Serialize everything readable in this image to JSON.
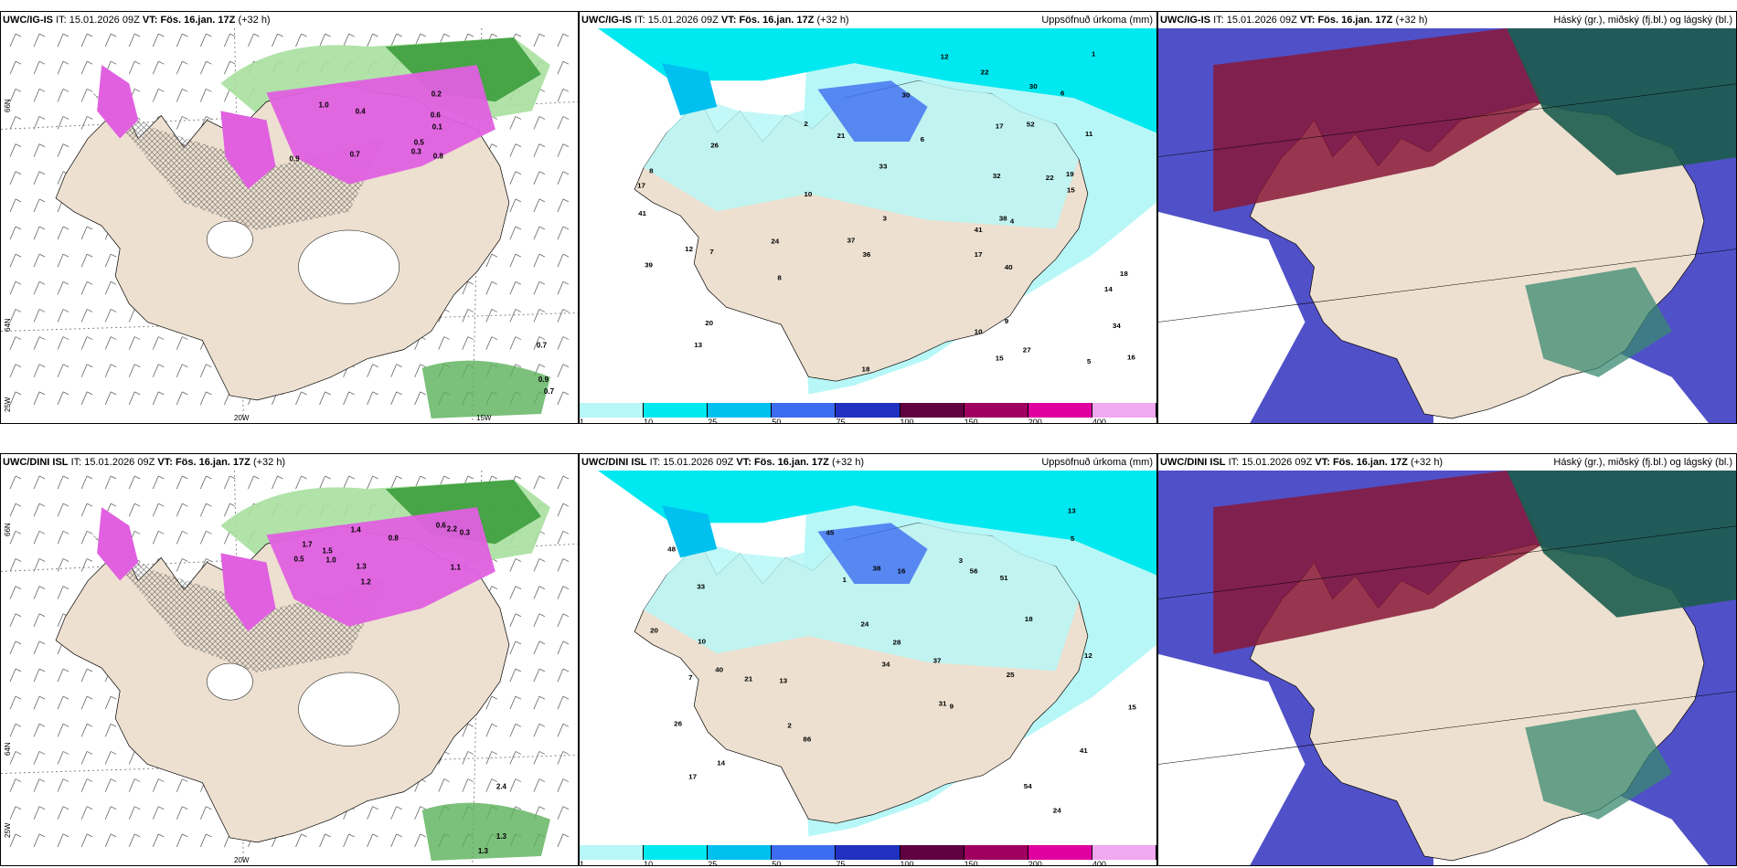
{
  "rows": [
    {
      "model": "UWC/IG-IS",
      "it_label": "IT:",
      "it_value": "15.01.2026 09Z",
      "vt_label": "VT:",
      "vt_value": "Fös. 16.jan. 17Z",
      "lead": "(+32 h)"
    },
    {
      "model": "UWC/DINI ISL",
      "it_label": "IT:",
      "it_value": "15.01.2026 09Z",
      "vt_label": "VT:",
      "vt_value": "Fös. 16.jan. 17Z",
      "lead": "(+32 h)"
    }
  ],
  "precip_title": "Uppsöfnuð úrkoma (mm)",
  "cloud_title": "Háský (gr.), miðský (fj.bl.) og lágský (bl.)",
  "colorbar": {
    "labels": [
      "1",
      "10",
      "25",
      "50",
      "75",
      "100",
      "150",
      "200",
      "400"
    ],
    "colors": [
      "#b8f7f7",
      "#00e8f0",
      "#00c0f0",
      "#3c6cf0",
      "#2030c0",
      "#600040",
      "#a00060",
      "#e000a0",
      "#f0a8f0"
    ]
  },
  "axis_labels": {
    "lat_66": "66N",
    "lat_64": "64N",
    "lon_25": "25W",
    "lon_20": "20W",
    "lon_15": "15W"
  },
  "colors": {
    "land": "#ede0d0",
    "snow_magenta": "#e060e0",
    "green_precip": "#3c9c3c",
    "cyan_precip": "#b8f7f7",
    "high_cloud": "#5050c8",
    "mid_cloud": "#881838",
    "low_cloud": "#1c5c4c"
  },
  "precip_values_top": [
    "17",
    "18",
    "22",
    "14",
    "10",
    "52",
    "19",
    "33",
    "34",
    "27",
    "38",
    "41",
    "39",
    "40",
    "8",
    "5",
    "6",
    "12",
    "30",
    "21",
    "36",
    "41",
    "32",
    "22",
    "15",
    "20",
    "26",
    "17",
    "16",
    "7",
    "11",
    "12",
    "8",
    "9",
    "10",
    "13",
    "6",
    "3",
    "4",
    "15",
    "37",
    "24",
    "30",
    "18",
    "17",
    "2",
    "1"
  ],
  "precip_values_bottom": [
    "24",
    "40",
    "31",
    "48",
    "41",
    "33",
    "14",
    "13",
    "51",
    "38",
    "56",
    "54",
    "86",
    "45",
    "37",
    "26",
    "25",
    "28",
    "20",
    "17",
    "13",
    "16",
    "18",
    "15",
    "12",
    "10",
    "21",
    "34",
    "24",
    "5",
    "9",
    "7",
    "2",
    "3",
    "1"
  ],
  "snow_values_top": [
    "0.6",
    "0.5",
    "0.9",
    "0.8",
    "1.0",
    "0.7",
    "0.3",
    "0.4",
    "0.2",
    "0.1"
  ],
  "snow_values_bottom": [
    "1.0",
    "1.5",
    "1.2",
    "1.7",
    "2.2",
    "1.4",
    "0.8",
    "0.6",
    "0.5",
    "1.1",
    "1.3",
    "0.3"
  ],
  "green_values_top": [
    "0.7",
    "0.9",
    "0.7"
  ],
  "green_values_bottom": [
    "1.3",
    "2.4",
    "1.3"
  ]
}
